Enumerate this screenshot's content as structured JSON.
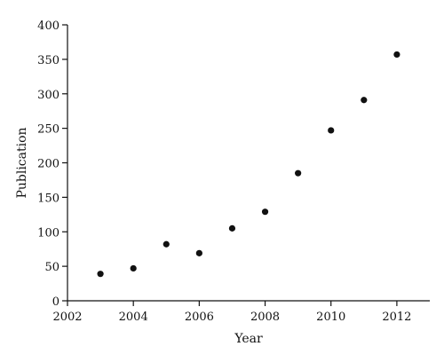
{
  "chart_data": {
    "type": "scatter",
    "xlabel": "Year",
    "ylabel": "Publication",
    "xlim": [
      2002,
      2013
    ],
    "ylim": [
      0,
      400
    ],
    "xticks": [
      2002,
      2004,
      2006,
      2008,
      2010,
      2012
    ],
    "yticks": [
      0,
      50,
      100,
      150,
      200,
      250,
      300,
      350,
      400
    ],
    "grid": false,
    "series": [
      {
        "points": [
          {
            "x": 2003,
            "y": 39
          },
          {
            "x": 2004,
            "y": 47
          },
          {
            "x": 2005,
            "y": 82
          },
          {
            "x": 2006,
            "y": 69
          },
          {
            "x": 2007,
            "y": 105
          },
          {
            "x": 2008,
            "y": 129
          },
          {
            "x": 2009,
            "y": 185
          },
          {
            "x": 2010,
            "y": 247
          },
          {
            "x": 2011,
            "y": 291
          },
          {
            "x": 2012,
            "y": 357
          }
        ]
      }
    ]
  }
}
